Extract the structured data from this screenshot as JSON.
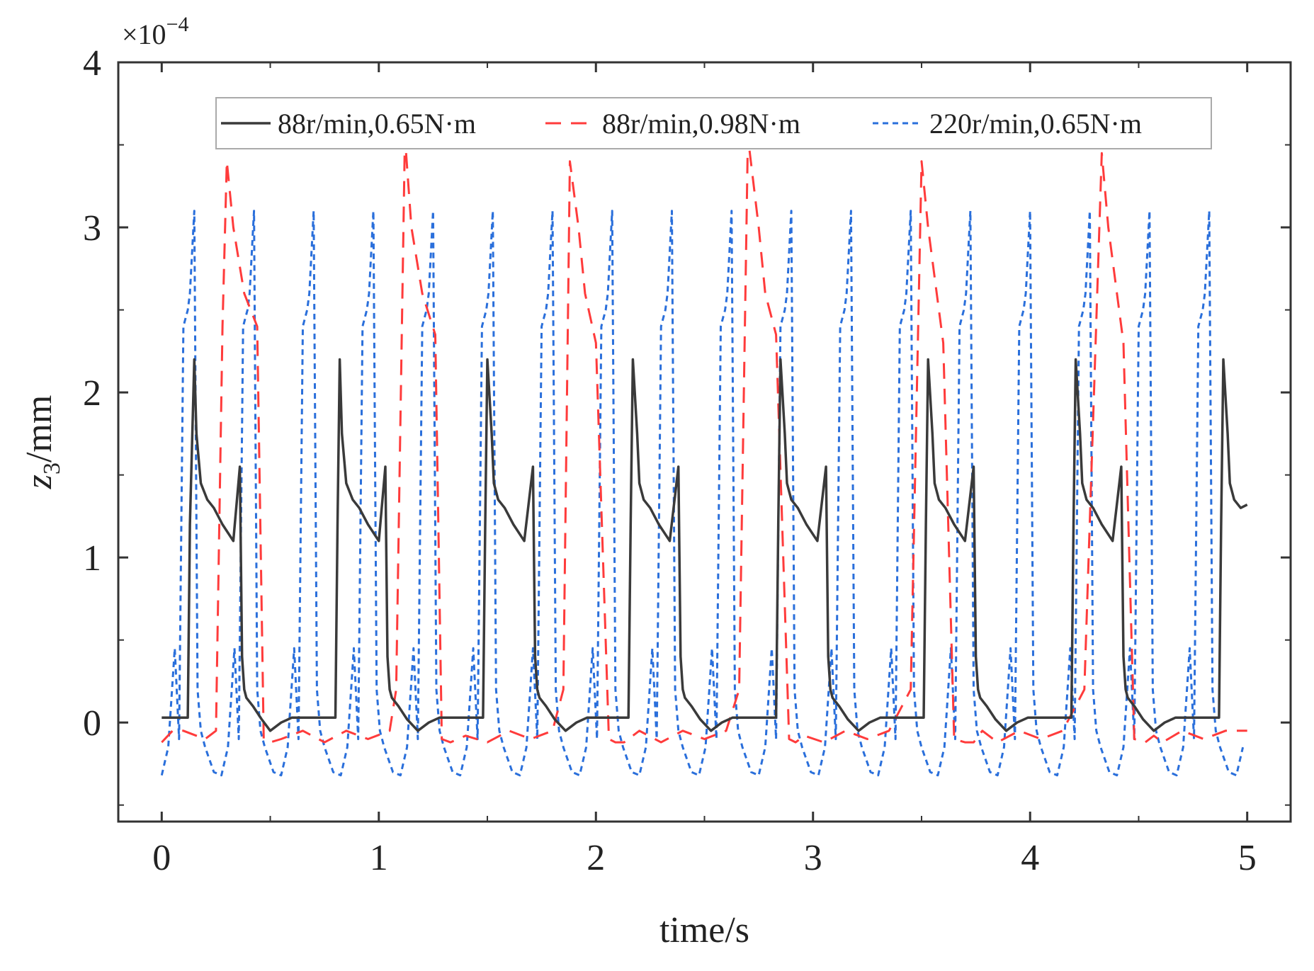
{
  "chart_data": {
    "type": "line",
    "title": "",
    "xlabel": "time/s",
    "ylabel_main": "z",
    "ylabel_sub": "3",
    "ylabel_unit": "/mm",
    "y_multiplier": "×10",
    "y_multiplier_exp": "−4",
    "xlim": [
      -0.2,
      5.2
    ],
    "ylim": [
      -0.6,
      4.0
    ],
    "xticks": [
      0,
      1,
      2,
      3,
      4,
      5
    ],
    "xtick_labels": [
      "0",
      "1",
      "2",
      "3",
      "4",
      "5"
    ],
    "yticks": [
      0,
      1,
      2,
      3,
      4
    ],
    "ytick_labels": [
      "0",
      "1",
      "2",
      "3",
      "4"
    ],
    "legend_position": "top",
    "series": [
      {
        "name": "88r/min,0.65N·m",
        "color": "#3a3a3a",
        "style": "solid",
        "x": [
          0.0,
          0.12,
          0.13,
          0.15,
          0.16,
          0.18,
          0.21,
          0.24,
          0.28,
          0.33,
          0.36,
          0.37,
          0.38,
          0.39,
          0.42,
          0.46,
          0.5,
          0.55,
          0.6,
          0.68,
          0.75,
          0.8,
          0.81,
          0.82,
          0.83,
          0.85,
          0.88,
          0.91,
          0.95,
          1.0,
          1.03,
          1.04,
          1.05,
          1.06,
          1.09,
          1.13,
          1.18,
          1.23,
          1.28,
          1.35,
          1.42,
          1.48,
          1.49,
          1.5,
          1.52,
          1.53,
          1.55,
          1.58,
          1.62,
          1.67,
          1.71,
          1.72,
          1.73,
          1.74,
          1.77,
          1.81,
          1.86,
          1.91,
          1.96,
          2.04,
          2.1,
          2.15,
          2.16,
          2.17,
          2.19,
          2.2,
          2.22,
          2.25,
          2.29,
          2.34,
          2.38,
          2.39,
          2.4,
          2.41,
          2.44,
          2.48,
          2.53,
          2.58,
          2.63,
          2.71,
          2.78,
          2.83,
          2.84,
          2.85,
          2.87,
          2.88,
          2.9,
          2.93,
          2.97,
          3.02,
          3.06,
          3.07,
          3.08,
          3.09,
          3.12,
          3.16,
          3.21,
          3.26,
          3.31,
          3.38,
          3.45,
          3.51,
          3.52,
          3.53,
          3.55,
          3.56,
          3.58,
          3.61,
          3.65,
          3.7,
          3.74,
          3.75,
          3.76,
          3.77,
          3.8,
          3.84,
          3.89,
          3.94,
          3.99,
          4.06,
          4.13,
          4.19,
          4.2,
          4.21,
          4.23,
          4.24,
          4.26,
          4.29,
          4.33,
          4.38,
          4.42,
          4.43,
          4.44,
          4.45,
          4.48,
          4.52,
          4.57,
          4.62,
          4.67,
          4.74,
          4.81,
          4.87,
          4.88,
          4.89,
          4.91,
          4.92,
          4.94,
          4.97,
          5.0
        ],
        "y": [
          0.03,
          0.03,
          1.2,
          2.2,
          1.75,
          1.45,
          1.35,
          1.3,
          1.2,
          1.1,
          1.55,
          0.4,
          0.2,
          0.15,
          0.1,
          0.02,
          -0.05,
          0.0,
          0.03,
          0.03,
          0.03,
          0.03,
          1.2,
          2.2,
          1.75,
          1.45,
          1.35,
          1.3,
          1.2,
          1.1,
          1.55,
          0.4,
          0.2,
          0.15,
          0.1,
          0.02,
          -0.05,
          0.0,
          0.03,
          0.03,
          0.03,
          0.03,
          1.2,
          2.2,
          1.75,
          1.45,
          1.35,
          1.3,
          1.2,
          1.1,
          1.55,
          0.4,
          0.2,
          0.15,
          0.1,
          0.02,
          -0.05,
          0.0,
          0.03,
          0.03,
          0.03,
          0.03,
          1.2,
          2.2,
          1.75,
          1.45,
          1.35,
          1.3,
          1.2,
          1.1,
          1.55,
          0.4,
          0.2,
          0.15,
          0.1,
          0.02,
          -0.05,
          0.0,
          0.03,
          0.03,
          0.03,
          0.03,
          1.2,
          2.2,
          1.75,
          1.45,
          1.35,
          1.3,
          1.2,
          1.1,
          1.55,
          0.4,
          0.2,
          0.15,
          0.1,
          0.02,
          -0.05,
          0.0,
          0.03,
          0.03,
          0.03,
          0.03,
          1.2,
          2.2,
          1.75,
          1.45,
          1.35,
          1.3,
          1.2,
          1.1,
          1.55,
          0.4,
          0.2,
          0.15,
          0.1,
          0.02,
          -0.05,
          0.0,
          0.03,
          0.03,
          0.03,
          0.03,
          1.2,
          2.2,
          1.75,
          1.45,
          1.35,
          1.3,
          1.2,
          1.1,
          1.55,
          0.4,
          0.2,
          0.15,
          0.1,
          0.02,
          -0.05,
          0.0,
          0.03,
          0.03,
          0.03,
          0.03,
          1.2,
          2.2,
          1.75,
          1.45,
          1.35,
          1.3,
          1.32
        ]
      },
      {
        "name": "88r/min,0.98N·m",
        "color": "#ff3b3b",
        "style": "dashed",
        "x": [
          0.0,
          0.05,
          0.1,
          0.2,
          0.25,
          0.28,
          0.3,
          0.33,
          0.38,
          0.44,
          0.47,
          0.5,
          0.55,
          0.65,
          0.75,
          0.85,
          0.95,
          1.05,
          1.08,
          1.12,
          1.15,
          1.2,
          1.26,
          1.29,
          1.33,
          1.4,
          1.5,
          1.6,
          1.7,
          1.8,
          1.85,
          1.88,
          1.92,
          1.95,
          2.0,
          2.06,
          2.09,
          2.13,
          2.2,
          2.3,
          2.4,
          2.5,
          2.6,
          2.66,
          2.7,
          2.75,
          2.78,
          2.83,
          2.89,
          2.92,
          2.96,
          3.05,
          3.15,
          3.25,
          3.35,
          3.45,
          3.5,
          3.53,
          3.57,
          3.6,
          3.65,
          3.7,
          3.74,
          3.78,
          3.85,
          3.95,
          4.05,
          4.15,
          4.25,
          4.33,
          4.36,
          4.4,
          4.43,
          4.48,
          4.53,
          4.57,
          4.61,
          4.7,
          4.8,
          4.9,
          5.0
        ],
        "y": [
          -0.12,
          -0.05,
          -0.05,
          -0.1,
          -0.05,
          2.4,
          3.4,
          3.0,
          2.6,
          2.4,
          -0.1,
          -0.12,
          -0.1,
          -0.05,
          -0.12,
          -0.05,
          -0.1,
          -0.05,
          0.2,
          3.55,
          3.0,
          2.6,
          2.35,
          -0.1,
          -0.12,
          -0.08,
          -0.12,
          -0.05,
          -0.1,
          -0.05,
          0.2,
          3.4,
          3.0,
          2.6,
          2.3,
          -0.1,
          -0.12,
          -0.12,
          -0.05,
          -0.12,
          -0.05,
          -0.1,
          -0.05,
          0.2,
          3.55,
          3.0,
          2.6,
          2.35,
          -0.1,
          -0.12,
          -0.08,
          -0.12,
          -0.05,
          -0.1,
          -0.05,
          0.2,
          3.4,
          3.0,
          2.6,
          2.3,
          -0.1,
          -0.12,
          -0.12,
          -0.05,
          -0.12,
          -0.05,
          -0.1,
          -0.05,
          0.2,
          3.45,
          3.0,
          2.6,
          2.3,
          -0.1,
          -0.12,
          -0.08,
          -0.12,
          -0.05,
          -0.1,
          -0.05,
          -0.05
        ]
      },
      {
        "name": "220r/min,0.65N·m",
        "color": "#2a6fdb",
        "style": "dotted",
        "period": 0.275,
        "x": [
          0.0,
          0.03,
          0.06,
          0.08,
          0.1,
          0.12,
          0.13,
          0.15,
          0.165,
          0.18,
          0.2,
          0.24
        ],
        "y": [
          -0.32,
          -0.15,
          0.45,
          -0.1,
          2.4,
          2.5,
          2.6,
          3.1,
          0.2,
          -0.05,
          -0.15,
          -0.3
        ]
      }
    ]
  }
}
